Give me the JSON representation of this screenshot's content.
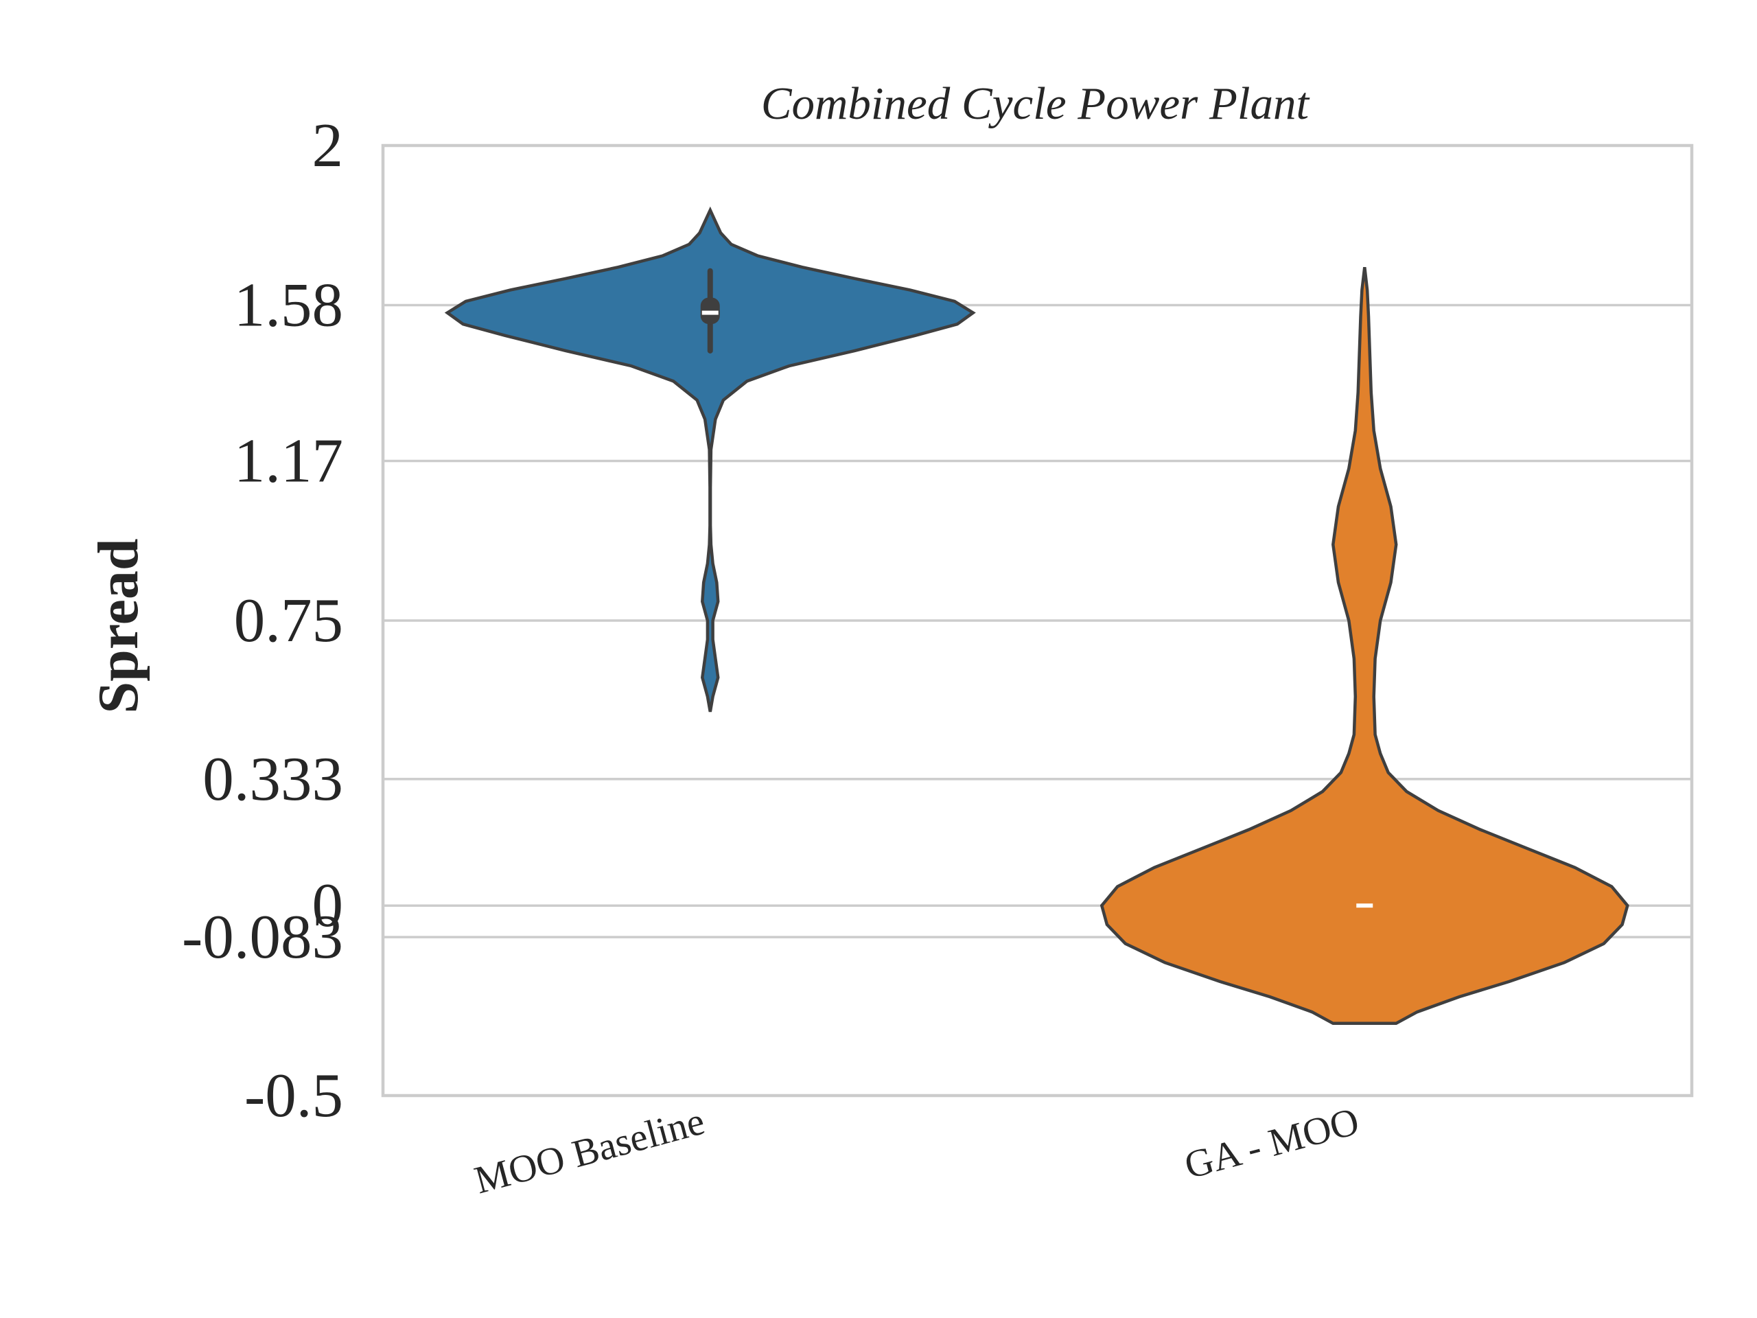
{
  "chart_data": {
    "type": "violin",
    "title": "Combined Cycle Power Plant",
    "ylabel": "Spread",
    "xlabel": "",
    "ylim": [
      -0.5,
      2
    ],
    "yticks": [
      2,
      1.58,
      1.17,
      0.75,
      0.333,
      0,
      -0.083,
      -0.5
    ],
    "ytick_labels": [
      "2",
      "1.58",
      "1.17",
      "0.75",
      "0.333",
      "0",
      "-0.083",
      "-0.5"
    ],
    "grid": true,
    "categories": [
      "MOO Baseline",
      "GA - MOO"
    ],
    "series": [
      {
        "category": "MOO Baseline",
        "color": "#3274a1",
        "min": 0.51,
        "max": 1.83,
        "median": 1.56,
        "q1": 1.53,
        "q3": 1.6,
        "whisker_low": 1.46,
        "whisker_high": 1.67,
        "density": [
          [
            0.51,
            0.0
          ],
          [
            0.55,
            0.01
          ],
          [
            0.6,
            0.03
          ],
          [
            0.65,
            0.02
          ],
          [
            0.7,
            0.01
          ],
          [
            0.75,
            0.01
          ],
          [
            0.8,
            0.03
          ],
          [
            0.85,
            0.025
          ],
          [
            0.9,
            0.01
          ],
          [
            0.95,
            0.003
          ],
          [
            1.0,
            0.001
          ],
          [
            1.1,
            0.001
          ],
          [
            1.2,
            0.003
          ],
          [
            1.28,
            0.02
          ],
          [
            1.33,
            0.05
          ],
          [
            1.38,
            0.14
          ],
          [
            1.42,
            0.3
          ],
          [
            1.46,
            0.55
          ],
          [
            1.5,
            0.78
          ],
          [
            1.53,
            0.94
          ],
          [
            1.56,
            1.0
          ],
          [
            1.59,
            0.93
          ],
          [
            1.62,
            0.76
          ],
          [
            1.65,
            0.55
          ],
          [
            1.68,
            0.35
          ],
          [
            1.71,
            0.18
          ],
          [
            1.74,
            0.08
          ],
          [
            1.77,
            0.04
          ],
          [
            1.8,
            0.02
          ],
          [
            1.83,
            0.0
          ]
        ]
      },
      {
        "category": "GA - MOO",
        "color": "#e1812c",
        "min": -0.31,
        "max": 1.68,
        "median": 0.0,
        "q1": 0.0,
        "q3": 0.0,
        "whisker_low": 0.0,
        "whisker_high": 0.0,
        "density": [
          [
            -0.31,
            0.12
          ],
          [
            -0.28,
            0.2
          ],
          [
            -0.24,
            0.36
          ],
          [
            -0.2,
            0.55
          ],
          [
            -0.15,
            0.76
          ],
          [
            -0.1,
            0.91
          ],
          [
            -0.05,
            0.98
          ],
          [
            0.0,
            1.0
          ],
          [
            0.05,
            0.94
          ],
          [
            0.1,
            0.8
          ],
          [
            0.15,
            0.62
          ],
          [
            0.2,
            0.44
          ],
          [
            0.25,
            0.28
          ],
          [
            0.3,
            0.16
          ],
          [
            0.35,
            0.09
          ],
          [
            0.4,
            0.06
          ],
          [
            0.45,
            0.04
          ],
          [
            0.55,
            0.035
          ],
          [
            0.65,
            0.04
          ],
          [
            0.75,
            0.06
          ],
          [
            0.85,
            0.1
          ],
          [
            0.95,
            0.12
          ],
          [
            1.05,
            0.1
          ],
          [
            1.15,
            0.06
          ],
          [
            1.25,
            0.035
          ],
          [
            1.35,
            0.025
          ],
          [
            1.45,
            0.02
          ],
          [
            1.55,
            0.015
          ],
          [
            1.62,
            0.01
          ],
          [
            1.68,
            0.0
          ]
        ]
      }
    ]
  }
}
